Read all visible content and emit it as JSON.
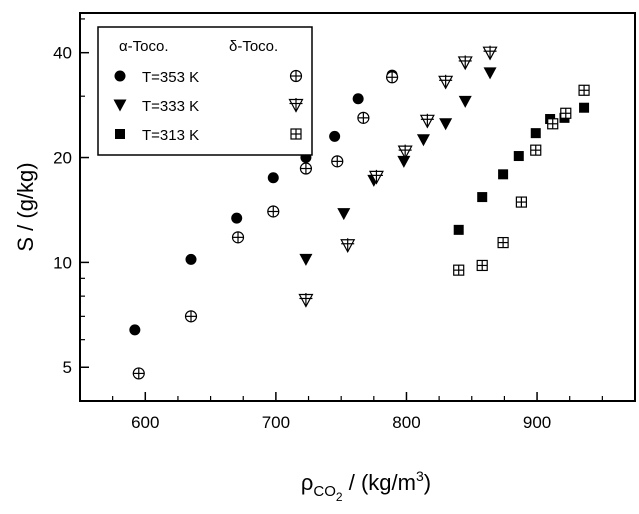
{
  "chart_data": {
    "type": "scatter",
    "title": "",
    "xlabel": {
      "base": "ρ",
      "sub": "CO",
      "subsub": "2",
      "rest": " / (kg/m",
      "sup": "3",
      "close": ")"
    },
    "ylabel": "S / (g/kg)",
    "x_range": [
      550,
      975
    ],
    "y_range": [
      4,
      52
    ],
    "y_scale": "log",
    "x_ticks": [
      600,
      700,
      800,
      900
    ],
    "x_minor_step": 25,
    "y_ticks": [
      5,
      10,
      20,
      40
    ],
    "y_minor_ticks": [
      6,
      7,
      8,
      9,
      30,
      50
    ],
    "grid": false,
    "legend": {
      "position": "top-left",
      "column_headers": [
        "α-Toco.",
        "δ-Toco."
      ],
      "rows": [
        "T=353 K",
        "T=333 K",
        "T=313 K"
      ]
    },
    "series": [
      {
        "label": "α-Toco. T=353 K",
        "marker": "circle",
        "points": [
          [
            592,
            6.4
          ],
          [
            635,
            10.2
          ],
          [
            670,
            13.4
          ],
          [
            698,
            17.5
          ],
          [
            723,
            20.0
          ],
          [
            745,
            23.0
          ],
          [
            763,
            29.5
          ],
          [
            789,
            34.5
          ]
        ]
      },
      {
        "label": "δ-Toco. T=353 K",
        "marker": "circle-plus",
        "points": [
          [
            595,
            4.8
          ],
          [
            635,
            7.0
          ],
          [
            671,
            11.8
          ],
          [
            698,
            14.0
          ],
          [
            723,
            18.6
          ],
          [
            747,
            19.5
          ],
          [
            767,
            26.0
          ],
          [
            789,
            34.0
          ]
        ]
      },
      {
        "label": "α-Toco. T=333 K",
        "marker": "triangle-down",
        "points": [
          [
            723,
            10.2
          ],
          [
            752,
            13.8
          ],
          [
            775,
            17.2
          ],
          [
            798,
            19.5
          ],
          [
            813,
            22.5
          ],
          [
            830,
            25.0
          ],
          [
            845,
            29.0
          ],
          [
            864,
            35.0
          ]
        ]
      },
      {
        "label": "δ-Toco. T=333 K",
        "marker": "triangle-down-plus",
        "points": [
          [
            723,
            7.8
          ],
          [
            755,
            11.2
          ],
          [
            777,
            17.6
          ],
          [
            799,
            20.8
          ],
          [
            816,
            25.5
          ],
          [
            830,
            33.0
          ],
          [
            845,
            37.5
          ],
          [
            864,
            40.0
          ]
        ]
      },
      {
        "label": "α-Toco. T=313 K",
        "marker": "square",
        "points": [
          [
            840,
            12.4
          ],
          [
            858,
            15.4
          ],
          [
            874,
            17.9
          ],
          [
            886,
            20.2
          ],
          [
            899,
            23.5
          ],
          [
            910,
            25.8
          ],
          [
            921,
            26.0
          ],
          [
            936,
            27.8
          ]
        ]
      },
      {
        "label": "δ-Toco. T=313 K",
        "marker": "square-plus",
        "points": [
          [
            840,
            9.5
          ],
          [
            858,
            9.8
          ],
          [
            874,
            11.4
          ],
          [
            888,
            14.9
          ],
          [
            899,
            21.0
          ],
          [
            912,
            25.0
          ],
          [
            922,
            26.8
          ],
          [
            936,
            31.2
          ]
        ]
      }
    ]
  }
}
